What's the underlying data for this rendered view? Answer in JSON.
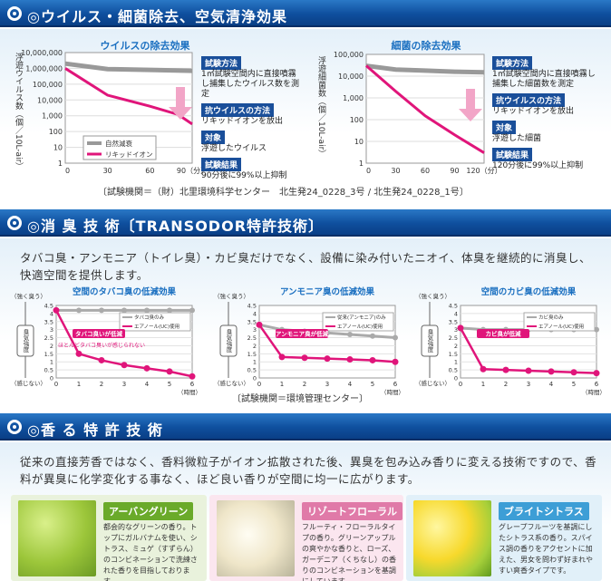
{
  "section1": {
    "title": "◎ウイルス・細菌除去、空気清浄効果",
    "virus_chart": {
      "title": "ウイルスの除去効果",
      "ylabel": "浮遊ウイルス数（個／10L-air）",
      "yticks": [
        "10,000,000",
        "1,000,000",
        "100,000",
        "10,000",
        "1,000",
        "100",
        "10",
        "1"
      ],
      "xticks": [
        "0",
        "30",
        "60",
        "90（分）"
      ],
      "legend": [
        "自然減衰",
        "リキッドイオン"
      ]
    },
    "virus_info": [
      {
        "tag": "試験方法",
        "text": "1㎥試験空間内に直接噴霧し捕集したウイルス数を測定"
      },
      {
        "tag": "抗ウイルスの方法",
        "text": "リキッドイオンを放出"
      },
      {
        "tag": "対象",
        "text": "浮遊したウイルス"
      },
      {
        "tag": "試験結果",
        "text": "90分後に99%以上抑制"
      }
    ],
    "bacteria_chart": {
      "title": "細菌の除去効果",
      "ylabel": "浮遊細菌数（個／10L-air）",
      "yticks": [
        "100,000",
        "10,000",
        "1,000",
        "100",
        "10",
        "1"
      ],
      "xticks": [
        "0",
        "30",
        "60",
        "90",
        "120（分）"
      ]
    },
    "bacteria_info": [
      {
        "tag": "試験方法",
        "text": "1㎥試験空間内に直接噴霧し捕集した細菌数を測定"
      },
      {
        "tag": "抗ウイルスの方法",
        "text": "リキッドイオンを放出"
      },
      {
        "tag": "対象",
        "text": "浮遊した細菌"
      },
      {
        "tag": "試験結果",
        "text": "120分後に99%以上抑制"
      }
    ],
    "credit": "〔試験機関＝（財）北里環境科学センター　北生発24_0228_3号 / 北生発24_0228_1号〕"
  },
  "section2": {
    "title": "◎消 臭 技 術〔TRANSODOR特許技術〕",
    "intro": "タバコ臭・アンモニア（トイレ臭）・カビ臭だけでなく、設備に染み付いたニオイ、体臭を継続的に消臭し、快適空間を提供します。",
    "yaxis_top": "（強く臭う）",
    "yaxis_bottom": "（感じない）",
    "yaxis_side": "臭気強度",
    "hours": "（時間）",
    "xticks": [
      "0",
      "1",
      "2",
      "3",
      "4",
      "5",
      "6"
    ],
    "yticks": [
      "4.5",
      "4",
      "3.5",
      "3",
      "2.5",
      "2",
      "1.5",
      "1",
      "0.5",
      "0"
    ],
    "charts": [
      {
        "title": "空間のタバコ臭の低減効果",
        "legend": [
          "タバコ臭のみ",
          "エアノール(UC)使用"
        ],
        "callout": "タバコ臭いが低減",
        "note": "ほとんどタバコ臭いが感じられない",
        "base": [
          4.2,
          4.2,
          4.2,
          4.2,
          4.2,
          4.2,
          4.2
        ],
        "treated": [
          4.2,
          1.5,
          1.1,
          0.8,
          0.6,
          0.4,
          0.1
        ]
      },
      {
        "title": "アンモニア臭の低減効果",
        "legend": [
          "従来(アンモニア)のみ",
          "エアノール(UC)使用"
        ],
        "callout": "アンモニア臭が低減",
        "base": [
          3.3,
          3.0,
          2.9,
          2.8,
          2.7,
          2.6,
          2.5
        ],
        "treated": [
          3.3,
          1.3,
          1.25,
          1.2,
          1.15,
          1.1,
          1.0
        ]
      },
      {
        "title": "空間のカビ臭の低減効果",
        "legend": [
          "カビ臭のみ",
          "エアノール(UC)使用"
        ],
        "callout": "カビ臭が低減",
        "base": [
          3.1,
          3.0,
          3.0,
          3.0,
          3.0,
          3.0,
          3.0
        ],
        "treated": [
          3.1,
          0.55,
          0.5,
          0.45,
          0.4,
          0.35,
          0.3
        ]
      }
    ],
    "credit": "〔試験機関＝環境管理センター〕"
  },
  "section3": {
    "title": "◎香 る 特 許 技 術",
    "intro": "従来の直接芳香ではなく、香料微粒子がイオン拡散された後、異臭を包み込み香りに変える技術ですので、香料が異臭に化学変化する事なく、ほど良い香りが空間に均一に広がります。",
    "cards": [
      {
        "title": "アーバングリーン",
        "text": "都会的なグリーンの香り。トップにガルバナムを使い、シトラス、ミュゲ（すずらん）のコンビネーションで洗練された香りを目指しております。",
        "color": "#6aaa2a"
      },
      {
        "title": "リゾートフローラル",
        "text": "フルーティ・フローラルタイプの香り。グリーンアップルの爽やかな香りと、ローズ、ガーデニア（くちなし）の香りのコンビネーションを基調にしています。",
        "color": "#e07aa8"
      },
      {
        "title": "ブライトシトラス",
        "text": "グレープフルーツを基調にしたシトラス系の香り。スパイス調の香りをアクセントに加えた、男女を問わず好まれやすい爽香タイプです。",
        "color": "#3d9ed6"
      }
    ]
  }
}
